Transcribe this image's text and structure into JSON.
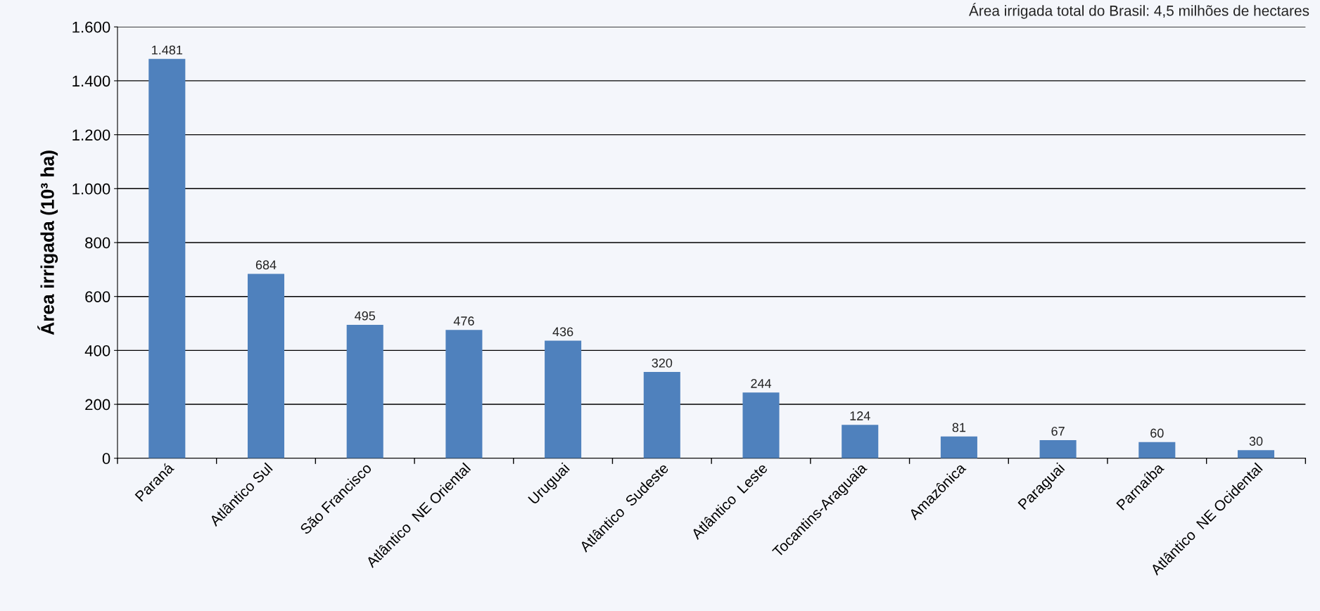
{
  "chart_data": {
    "type": "bar",
    "ylabel": "Área irrigada (10³ ha)",
    "annotations": [
      "Área irrigada total do Brasil: 4,5 milhões de hectares"
    ],
    "categories": [
      "Paraná",
      "Atlântico Sul",
      "São Francisco",
      "Atlântico  NE Oriental",
      "Uruguai",
      "Atlântico  Sudeste",
      "Atlântico  Leste",
      "Tocantins-Araguaia",
      "Amazônica",
      "Paraguai",
      "Parnaíba",
      "Atlântico  NE Ocidental"
    ],
    "values": [
      1481,
      684,
      495,
      476,
      436,
      320,
      244,
      124,
      81,
      67,
      60,
      30
    ],
    "value_labels": [
      "1.481",
      "684",
      "495",
      "476",
      "436",
      "320",
      "244",
      "124",
      "81",
      "67",
      "60",
      "30"
    ],
    "color": "#4f81bd",
    "ylim": [
      0,
      1600
    ],
    "yticks": [
      0,
      200,
      400,
      600,
      800,
      {
        "value": 1000,
        "label": "1.000"
      },
      {
        "value": 1200,
        "label": "1.200"
      },
      {
        "value": 1400,
        "label": "1.400"
      },
      {
        "value": 1600,
        "label": "1.600"
      }
    ],
    "grid": "y",
    "legend": false
  }
}
